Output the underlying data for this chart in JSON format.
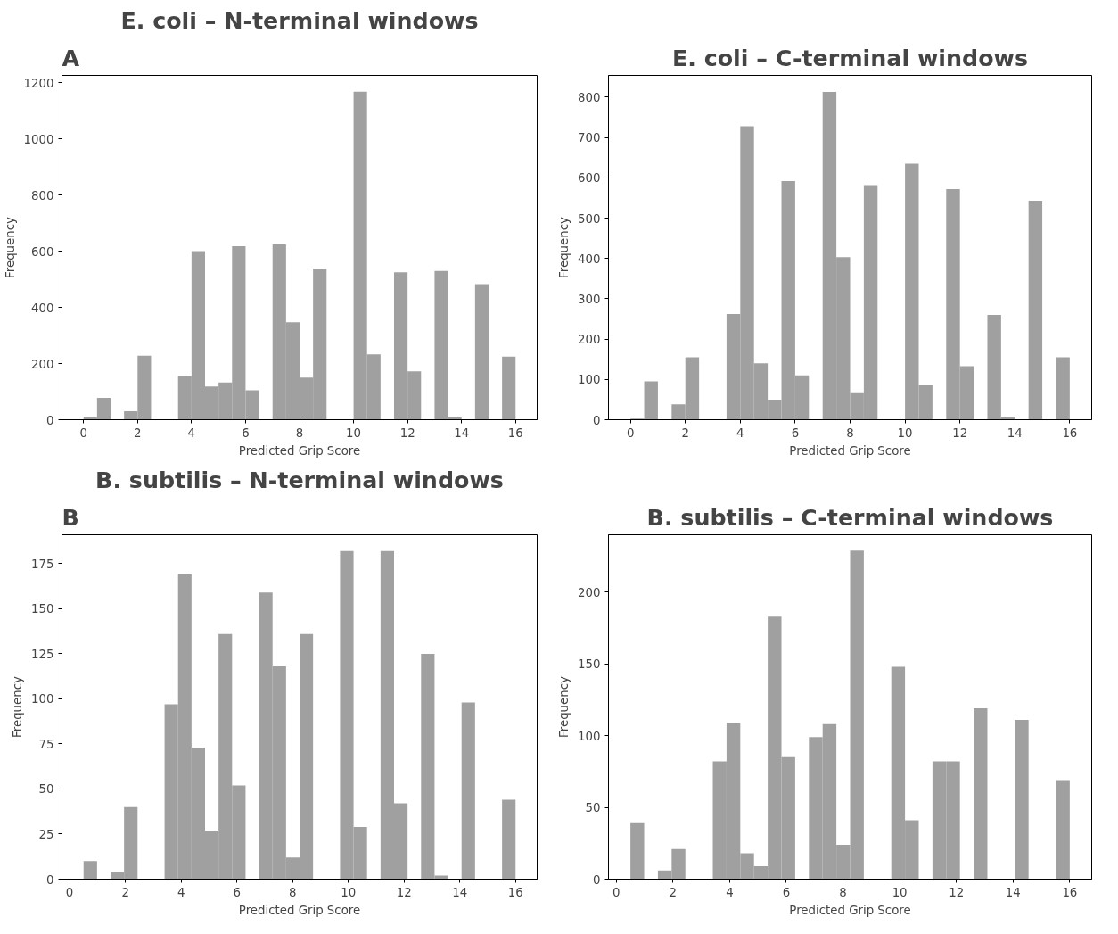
{
  "chart_data": [
    {
      "type": "histogram",
      "title": "E. coli – N-terminal windows",
      "annotations": [
        "A"
      ],
      "xlabel": "Predicted Grip Score",
      "ylabel": "Frequency",
      "color": "#a0a0a0",
      "bins": [
        0,
        0.5,
        1,
        1.5,
        2,
        2.5,
        3,
        3.5,
        4,
        4.5,
        5,
        5.5,
        6,
        6.5,
        7,
        7.5,
        8,
        8.5,
        9,
        9.5,
        10,
        10.5,
        11,
        11.5,
        12,
        12.5,
        13,
        13.5,
        14,
        14.5,
        15,
        15.5,
        16
      ],
      "values": [
        8,
        78,
        0,
        30,
        228,
        0,
        0,
        155,
        600,
        118,
        133,
        618,
        105,
        0,
        625,
        347,
        150,
        538,
        0,
        0,
        1168,
        233,
        0,
        525,
        172,
        0,
        530,
        8,
        0,
        483,
        0,
        225
      ],
      "xlim": [
        -0.8,
        16.8
      ],
      "ylim": [
        0,
        1226
      ],
      "xticks": [
        0,
        2,
        4,
        6,
        8,
        10,
        12,
        14,
        16
      ],
      "yticks": [
        0,
        200,
        400,
        600,
        800,
        1000,
        1200
      ]
    },
    {
      "type": "histogram",
      "title": "E. coli – C-terminal windows",
      "xlabel": "Predicted Grip Score",
      "ylabel": "Frequency",
      "color": "#a0a0a0",
      "bins": [
        0,
        0.5,
        1,
        1.5,
        2,
        2.5,
        3,
        3.5,
        4,
        4.5,
        5,
        5.5,
        6,
        6.5,
        7,
        7.5,
        8,
        8.5,
        9,
        9.5,
        10,
        10.5,
        11,
        11.5,
        12,
        12.5,
        13,
        13.5,
        14,
        14.5,
        15,
        15.5,
        16
      ],
      "values": [
        3,
        95,
        0,
        38,
        155,
        0,
        0,
        262,
        728,
        140,
        50,
        592,
        110,
        0,
        813,
        403,
        68,
        582,
        0,
        0,
        635,
        85,
        0,
        572,
        133,
        0,
        260,
        8,
        0,
        543,
        0,
        155
      ],
      "xlim": [
        -0.8,
        16.8
      ],
      "ylim": [
        0,
        854
      ],
      "xticks": [
        0,
        2,
        4,
        6,
        8,
        10,
        12,
        14,
        16
      ],
      "yticks": [
        0,
        100,
        200,
        300,
        400,
        500,
        600,
        700,
        800
      ]
    },
    {
      "type": "histogram",
      "title": "B. subtilis – N-terminal windows",
      "annotations": [
        "B"
      ],
      "xlabel": "Predicted Grip Score",
      "ylabel": "Frequency",
      "color": "#a0a0a0",
      "bins": [
        0.5,
        0.984375,
        1.46875,
        1.953125,
        2.4375,
        2.921875,
        3.40625,
        3.890625,
        4.375,
        4.859375,
        5.34375,
        5.828125,
        6.3125,
        6.796875,
        7.28125,
        7.765625,
        8.25,
        8.734375,
        9.21875,
        9.703125,
        10.1875,
        10.671875,
        11.15625,
        11.640625,
        12.125,
        12.609375,
        13.09375,
        13.578125,
        14.0625,
        14.546875,
        15.03125,
        15.515625,
        16
      ],
      "values": [
        10,
        0,
        4,
        40,
        0,
        0,
        97,
        169,
        73,
        27,
        136,
        52,
        0,
        159,
        118,
        12,
        136,
        0,
        0,
        182,
        29,
        0,
        182,
        42,
        0,
        125,
        2,
        0,
        98,
        0,
        0,
        44
      ],
      "xlim": [
        -0.275,
        16.775
      ],
      "ylim": [
        0,
        191
      ],
      "xticks": [
        0,
        2,
        4,
        6,
        8,
        10,
        12,
        14,
        16
      ],
      "yticks": [
        0,
        25,
        50,
        75,
        100,
        125,
        150,
        175
      ]
    },
    {
      "type": "histogram",
      "title": "B. subtilis – C-terminal windows",
      "xlabel": "Predicted Grip Score",
      "ylabel": "Frequency",
      "color": "#a0a0a0",
      "bins": [
        0.5,
        0.984375,
        1.46875,
        1.953125,
        2.4375,
        2.921875,
        3.40625,
        3.890625,
        4.375,
        4.859375,
        5.34375,
        5.828125,
        6.3125,
        6.796875,
        7.28125,
        7.765625,
        8.25,
        8.734375,
        9.21875,
        9.703125,
        10.1875,
        10.671875,
        11.15625,
        11.640625,
        12.125,
        12.609375,
        13.09375,
        13.578125,
        14.0625,
        14.546875,
        15.03125,
        15.515625,
        16
      ],
      "values": [
        39,
        0,
        6,
        21,
        0,
        0,
        82,
        109,
        18,
        9,
        183,
        85,
        0,
        99,
        108,
        24,
        229,
        0,
        0,
        148,
        41,
        0,
        82,
        82,
        0,
        119,
        0,
        0,
        111,
        0,
        0,
        69
      ],
      "xlim": [
        -0.275,
        16.775
      ],
      "ylim": [
        0,
        240
      ],
      "xticks": [
        0,
        2,
        4,
        6,
        8,
        10,
        12,
        14,
        16
      ],
      "yticks": [
        0,
        50,
        100,
        150,
        200
      ]
    }
  ]
}
